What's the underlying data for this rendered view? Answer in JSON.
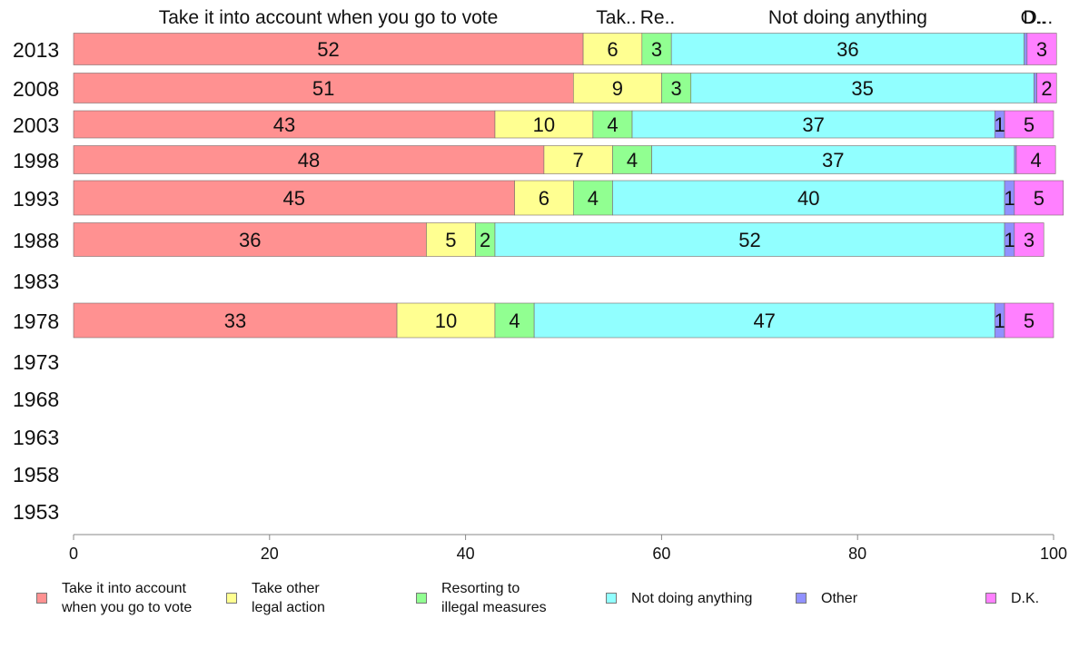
{
  "chart_data": {
    "type": "bar",
    "orientation": "horizontal",
    "stacked": true,
    "categories": [
      "2013",
      "2008",
      "2003",
      "1998",
      "1993",
      "1988",
      "1983",
      "1978",
      "1973",
      "1968",
      "1963",
      "1958",
      "1953"
    ],
    "xlim": [
      0,
      100
    ],
    "x_ticks": [
      0,
      20,
      40,
      60,
      80,
      100
    ],
    "grid": false,
    "legend_placement": "bottom",
    "top_labels": [
      {
        "text": "Take it into account when you go to vote",
        "series": 0
      },
      {
        "text": "Tak..",
        "series": 1
      },
      {
        "text": "Re..",
        "series": 2
      },
      {
        "text": "Not doing anything",
        "series": 3
      },
      {
        "text": "O..",
        "series": 4
      },
      {
        "text": "D...",
        "series": 5
      }
    ],
    "series": [
      {
        "name": "Take it into account\nwhen you go to vote",
        "color": "#ff9191",
        "values": [
          52,
          51,
          43,
          48,
          45,
          36,
          null,
          33,
          null,
          null,
          null,
          null,
          null
        ]
      },
      {
        "name": "Take other\nlegal action",
        "color": "#ffff91",
        "values": [
          6,
          9,
          10,
          7,
          6,
          5,
          null,
          10,
          null,
          null,
          null,
          null,
          null
        ]
      },
      {
        "name": "Resorting to\nillegal measures",
        "color": "#91ff91",
        "values": [
          3,
          3,
          4,
          4,
          4,
          2,
          null,
          4,
          null,
          null,
          null,
          null,
          null
        ]
      },
      {
        "name": "Not doing anything",
        "color": "#91ffff",
        "values": [
          36,
          35,
          37,
          37,
          40,
          52,
          null,
          47,
          null,
          null,
          null,
          null,
          null
        ]
      },
      {
        "name": "Other",
        "color": "#9191ff",
        "values": [
          0.3,
          0.3,
          1,
          0.2,
          1,
          1,
          null,
          1,
          null,
          null,
          null,
          null,
          null
        ]
      },
      {
        "name": "D.K.",
        "color": "#ff80ff",
        "values": [
          3,
          2,
          5,
          4,
          5,
          3,
          null,
          5,
          null,
          null,
          null,
          null,
          null
        ]
      }
    ],
    "value_labels": [
      [
        "52",
        "6",
        "3",
        "36",
        "",
        "3"
      ],
      [
        "51",
        "9",
        "3",
        "35",
        "",
        "2"
      ],
      [
        "43",
        "10",
        "4",
        "37",
        "1",
        "5"
      ],
      [
        "48",
        "7",
        "4",
        "37",
        "",
        "4"
      ],
      [
        "45",
        "6",
        "4",
        "40",
        "1",
        "5"
      ],
      [
        "36",
        "5",
        "2",
        "52",
        "1",
        "3"
      ],
      null,
      [
        "33",
        "10",
        "4",
        "47",
        "1",
        "5"
      ],
      null,
      null,
      null,
      null,
      null
    ]
  }
}
